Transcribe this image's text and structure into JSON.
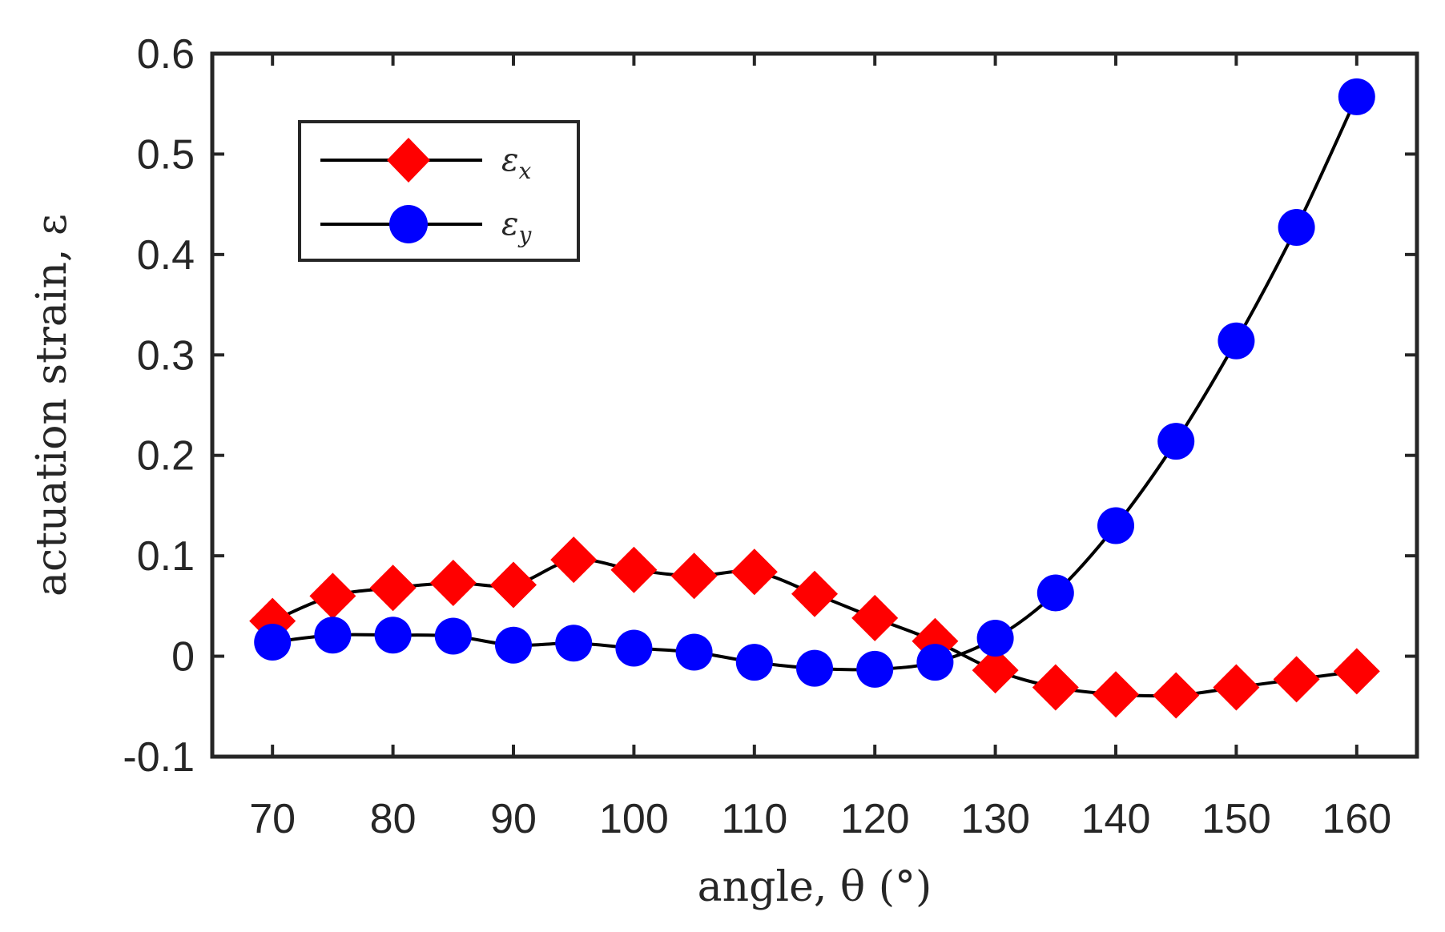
{
  "chart_data": {
    "type": "line",
    "title": "",
    "xlabel": "angle, θ (°)",
    "ylabel": "actuation strain, ε",
    "xlim": [
      65,
      165
    ],
    "ylim": [
      -0.1,
      0.6
    ],
    "x_ticks": [
      70,
      80,
      90,
      100,
      110,
      120,
      130,
      140,
      150,
      160
    ],
    "y_ticks": [
      -0.1,
      0,
      0.1,
      0.2,
      0.3,
      0.4,
      0.5,
      0.6
    ],
    "x_tick_labels": [
      "70",
      "80",
      "90",
      "100",
      "110",
      "120",
      "130",
      "140",
      "150",
      "160"
    ],
    "y_tick_labels": [
      "-0.1",
      "0",
      "0.1",
      "0.2",
      "0.3",
      "0.4",
      "0.5",
      "0.6"
    ],
    "grid": false,
    "legend_position": "top-left",
    "x": [
      70,
      75,
      80,
      85,
      90,
      95,
      100,
      105,
      110,
      115,
      120,
      125,
      130,
      135,
      140,
      145,
      150,
      155,
      160
    ],
    "series": [
      {
        "name": "ε_x",
        "legend_main": "ε",
        "legend_sub": "x",
        "marker": "diamond",
        "marker_color": "#ff0000",
        "line_color": "#000000",
        "values": [
          0.035,
          0.06,
          0.068,
          0.073,
          0.071,
          0.096,
          0.086,
          0.08,
          0.084,
          0.062,
          0.038,
          0.015,
          -0.014,
          -0.031,
          -0.038,
          -0.039,
          -0.031,
          -0.023,
          -0.015
        ]
      },
      {
        "name": "ε_y",
        "legend_main": "ε",
        "legend_sub": "y",
        "marker": "circle",
        "marker_color": "#0000ff",
        "line_color": "#000000",
        "values": [
          0.014,
          0.021,
          0.021,
          0.02,
          0.011,
          0.013,
          0.008,
          0.004,
          -0.006,
          -0.012,
          -0.013,
          -0.006,
          0.018,
          0.063,
          0.13,
          0.214,
          0.314,
          0.427,
          0.557
        ]
      }
    ]
  }
}
